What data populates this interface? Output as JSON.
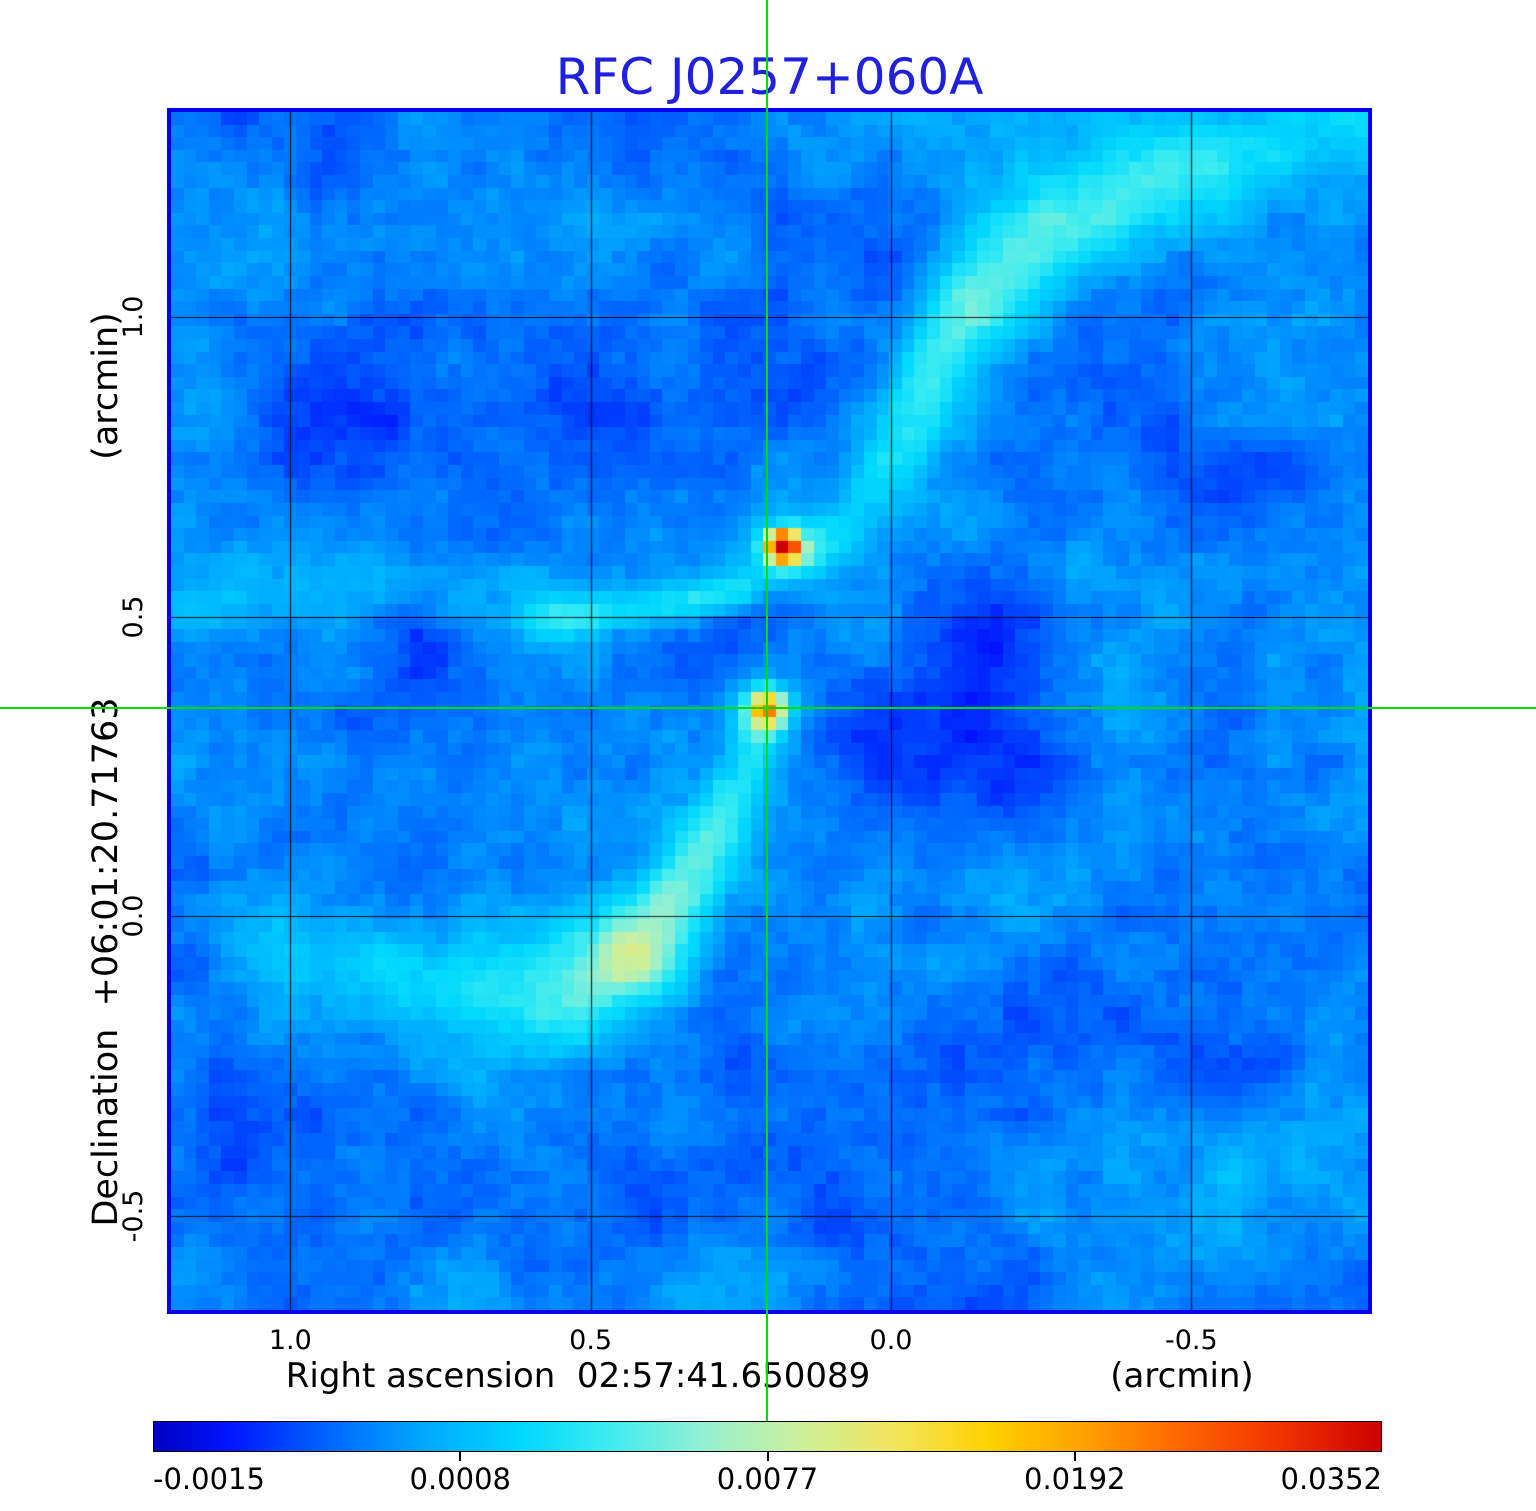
{
  "title": {
    "text": "RFC J0257+060A"
  },
  "axes": {
    "x": {
      "title": "Right ascension  02:57:41.650089",
      "unit": "(arcmin)",
      "ticks": [
        "1.0",
        "0.5",
        "0.0",
        "-0.5"
      ]
    },
    "y": {
      "title": "Declination  +06:01:20.71763",
      "unit": "(arcmin)",
      "ticks": [
        "1.0",
        "0.5",
        "0.0",
        "-0.5"
      ]
    }
  },
  "colorbar": {
    "labels": [
      "-0.0015",
      "0.0008",
      "0.0077",
      "0.0192",
      "0.0352"
    ]
  },
  "colors": {
    "title": "#2020dd",
    "frame": "#0000ee",
    "crosshair": "#00dd00",
    "grid": "#000000",
    "text": "#000000",
    "background": "#ffffff"
  },
  "chart_data": {
    "type": "heatmap",
    "title": "RFC J0257+060A",
    "xlabel": "Right ascension  02:57:41.650089 (arcmin)",
    "ylabel": "Declination  +06:01:20.71763 (arcmin)",
    "x_tick_values": [
      1.0,
      0.5,
      0.0,
      -0.5
    ],
    "y_tick_values": [
      1.0,
      0.5,
      0.0,
      -0.5
    ],
    "x_range_arcmin": [
      1.2,
      -0.8
    ],
    "y_range_arcmin": [
      -0.66,
      1.34
    ],
    "grid": true,
    "colorbar": {
      "tick_values": [
        -0.0015,
        0.0008,
        0.0077,
        0.0192,
        0.0352
      ],
      "tick_positions": [
        0,
        0.25,
        0.5,
        0.75,
        1
      ],
      "scale": "quadratic",
      "min": -0.0015,
      "max": 0.0352
    },
    "crosshair_arcmin": {
      "ra": 0.207,
      "dec": 0.347
    },
    "sources": [
      {
        "label": "bright compact source",
        "ra_arcmin": 0.18,
        "dec_arcmin": 0.617,
        "peak": 0.0352
      },
      {
        "label": "secondary compact source at crosshair",
        "ra_arcmin": 0.207,
        "dec_arcmin": 0.346,
        "peak": 0.016
      }
    ],
    "render": {
      "seed": 77,
      "jitter_seed": 1234,
      "grid_n": 95,
      "base": 0.175,
      "jitter": 0.013,
      "noise_layers": [
        {
          "n": 9,
          "amp": 0.045
        },
        {
          "n": 24,
          "amp": 0.03
        },
        {
          "n": 60,
          "amp": 0.02
        }
      ],
      "colormap": [
        [
          0.0,
          0,
          0,
          192
        ],
        [
          0.06,
          0,
          20,
          255
        ],
        [
          0.14,
          0,
          100,
          255
        ],
        [
          0.22,
          0,
          168,
          255
        ],
        [
          0.3,
          0,
          216,
          255
        ],
        [
          0.37,
          60,
          236,
          240
        ],
        [
          0.45,
          150,
          240,
          210
        ],
        [
          0.52,
          200,
          240,
          160
        ],
        [
          0.6,
          240,
          230,
          96
        ],
        [
          0.68,
          255,
          210,
          0
        ],
        [
          0.76,
          255,
          160,
          0
        ],
        [
          0.84,
          255,
          100,
          0
        ],
        [
          0.92,
          240,
          50,
          0
        ],
        [
          1.0,
          205,
          0,
          0
        ]
      ],
      "filaments": [
        {
          "pts": [
            [
              -0.831,
              1.362,
              0.16,
              0.085
            ],
            [
              -0.564,
              1.279,
              0.18,
              0.08
            ],
            [
              -0.281,
              1.145,
              0.24,
              0.07
            ],
            [
              -0.148,
              1.045,
              0.27,
              0.065
            ],
            [
              -0.065,
              0.895,
              0.2,
              0.055
            ],
            [
              -0.007,
              0.77,
              0.16,
              0.045
            ],
            [
              0.048,
              0.669,
              0.14,
              0.038
            ],
            [
              0.127,
              0.611,
              0.12,
              0.03
            ]
          ]
        },
        {
          "pts": [
            [
              0.577,
              0.497,
              0.12,
              0.026
            ],
            [
              0.402,
              0.513,
              0.17,
              0.026
            ],
            [
              0.318,
              0.525,
              0.2,
              0.026
            ],
            [
              0.252,
              0.54,
              0.16,
              0.024
            ]
          ]
        },
        {
          "pts": [
            [
              1.202,
              0.552,
              0.05,
              0.05
            ],
            [
              0.585,
              0.527,
              0.06,
              0.05
            ]
          ]
        },
        {
          "pts": [
            [
              1.002,
              -0.059,
              0.1,
              0.065
            ],
            [
              0.852,
              -0.084,
              0.12,
              0.068
            ],
            [
              0.702,
              -0.117,
              0.15,
              0.072
            ],
            [
              0.552,
              -0.125,
              0.2,
              0.075
            ],
            [
              0.427,
              -0.059,
              0.36,
              0.06
            ],
            [
              0.335,
              0.059,
              0.2,
              0.045
            ],
            [
              0.277,
              0.167,
              0.15,
              0.038
            ],
            [
              0.238,
              0.259,
              0.13,
              0.032
            ],
            [
              0.218,
              0.323,
              0.11,
              0.028
            ]
          ]
        }
      ],
      "blobs": [
        [
          0.18,
          0.617,
          0.018,
          0.88
        ],
        [
          0.18,
          0.617,
          0.045,
          0.16
        ],
        [
          0.207,
          0.346,
          0.021,
          0.44
        ],
        [
          0.207,
          0.346,
          0.04,
          0.13
        ],
        [
          0.035,
          0.343,
          0.075,
          -0.085
        ],
        [
          -0.165,
          0.284,
          0.09,
          -0.07
        ],
        [
          -0.18,
          0.45,
          0.06,
          -0.055
        ],
        [
          0.935,
          0.83,
          0.1,
          -0.05
        ],
        [
          0.52,
          0.88,
          0.08,
          -0.045
        ],
        [
          -0.58,
          0.74,
          0.09,
          -0.06
        ],
        [
          0.785,
          0.44,
          0.05,
          -0.07
        ],
        [
          1.05,
          -0.36,
          0.1,
          -0.045
        ],
        [
          0.32,
          -0.44,
          0.09,
          -0.04
        ],
        [
          -0.66,
          -0.44,
          0.12,
          0.04
        ],
        [
          1.1,
          0.35,
          0.15,
          0.035
        ]
      ]
    }
  }
}
